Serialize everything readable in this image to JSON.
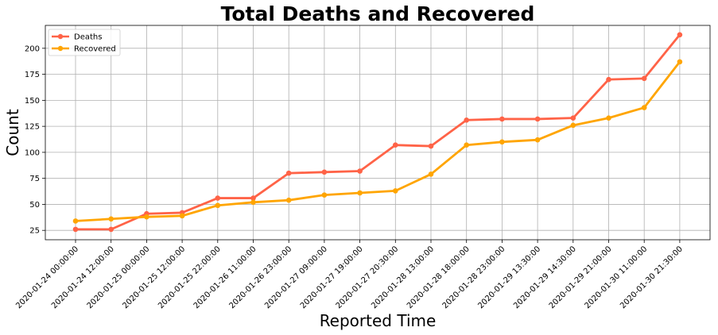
{
  "chart_data": {
    "type": "line",
    "title": "Total Deaths and Recovered",
    "xlabel": "Reported Time",
    "ylabel": "Count",
    "categories": [
      "2020-01-24 00:00:00",
      "2020-01-24 12:00:00",
      "2020-01-25 00:00:00",
      "2020-01-25 12:00:00",
      "2020-01-25 22:00:00",
      "2020-01-26 11:00:00",
      "2020-01-26 23:00:00",
      "2020-01-27 09:00:00",
      "2020-01-27 19:00:00",
      "2020-01-27 20:30:00",
      "2020-01-28 13:00:00",
      "2020-01-28 18:00:00",
      "2020-01-28 23:00:00",
      "2020-01-29 13:30:00",
      "2020-01-29 14:30:00",
      "2020-01-29 21:00:00",
      "2020-01-30 11:00:00",
      "2020-01-30 21:30:00"
    ],
    "series": [
      {
        "name": "Deaths",
        "color": "#ff6347",
        "values": [
          26,
          26,
          41,
          42,
          56,
          56,
          80,
          81,
          82,
          107,
          106,
          131,
          132,
          132,
          133,
          170,
          171,
          213
        ]
      },
      {
        "name": "Recovered",
        "color": "#ffa500",
        "values": [
          34,
          36,
          38,
          39,
          49,
          52,
          54,
          59,
          61,
          63,
          79,
          107,
          110,
          112,
          126,
          133,
          143,
          187
        ]
      }
    ],
    "yticks": [
      25,
      50,
      75,
      100,
      125,
      150,
      175,
      200
    ],
    "ylim": [
      16,
      222
    ],
    "grid": true,
    "legend": "top-left"
  }
}
